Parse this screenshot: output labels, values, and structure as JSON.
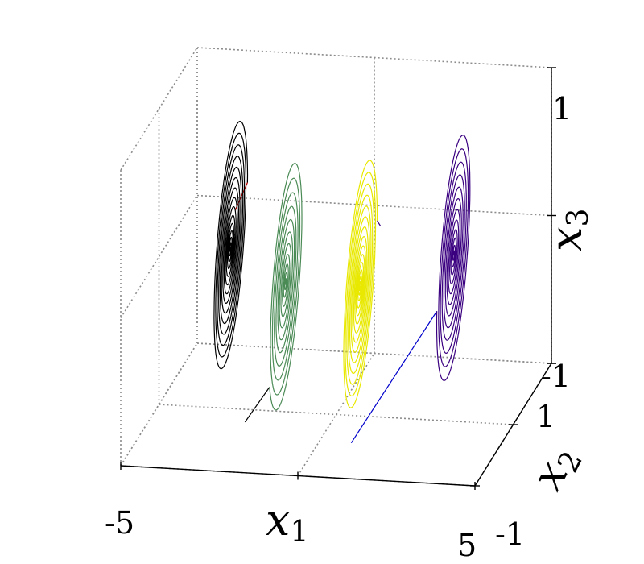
{
  "chart_data": {
    "type": "line3d",
    "title": "",
    "axes": {
      "x1": {
        "label": "x",
        "sub": "1",
        "lim": [
          -5,
          5
        ],
        "ticks": [
          "-5",
          "5"
        ]
      },
      "x2": {
        "label": "x",
        "sub": "2",
        "lim": [
          -1,
          1
        ],
        "ticks": [
          "-1",
          "1"
        ]
      },
      "x3": {
        "label": "x",
        "sub": "3",
        "lim": [
          -1,
          1
        ],
        "ticks": [
          "-1",
          "1"
        ]
      }
    },
    "grid": true,
    "series": [
      {
        "color": "#000000",
        "lead_color": "#cc0000",
        "center": [
          -3.2,
          0.2,
          0.0
        ],
        "start": [
          -2.2,
          -0.6,
          0.6
        ],
        "turns": 14,
        "rx": 0.65,
        "rz": 0.75
      },
      {
        "color": "#4a8a55",
        "lead_color": "#000000",
        "center": [
          -1.1,
          -0.3,
          0.0
        ],
        "start": [
          -1.6,
          -0.9,
          -0.7
        ],
        "turns": 11,
        "rx": 0.65,
        "rz": 0.75
      },
      {
        "color": "#e8e800",
        "lead_color": "#3a0080",
        "center": [
          1.0,
          -0.3,
          0.0
        ],
        "start": [
          1.9,
          -0.6,
          0.55
        ],
        "turns": 14,
        "rx": 0.65,
        "rz": 0.75
      },
      {
        "color": "#3a0080",
        "lead_color": "#0000cc",
        "center": [
          3.0,
          0.3,
          0.0
        ],
        "start": [
          1.4,
          -0.9,
          -0.8
        ],
        "turns": 12,
        "rx": 0.65,
        "rz": 0.75
      }
    ]
  }
}
